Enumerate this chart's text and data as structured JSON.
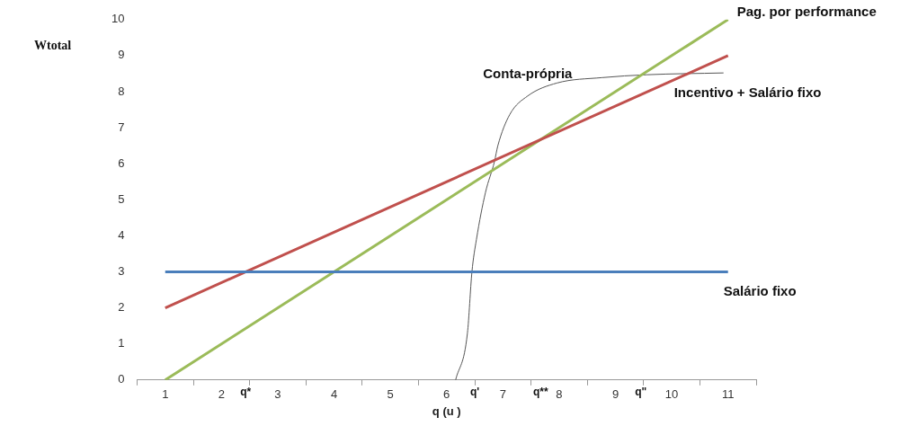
{
  "chart_data": {
    "type": "line",
    "xlabel": "q (u )",
    "ylabel": "Wtotal",
    "xlim": [
      0.5,
      11.5
    ],
    "xticks": [
      {
        "value": 0.5,
        "label": null
      },
      1,
      {
        "value": 1.5,
        "label": null
      },
      2,
      {
        "value": 2.5,
        "label": null
      },
      3,
      {
        "value": 3.5,
        "label": null
      },
      4,
      {
        "value": 4.5,
        "label": null
      },
      5,
      {
        "value": 5.5,
        "label": null
      },
      6,
      {
        "value": 6.5,
        "label": null
      },
      7,
      {
        "value": 7.5,
        "label": null
      },
      8,
      {
        "value": 8.5,
        "label": null
      },
      9,
      {
        "value": 9.5,
        "label": null
      },
      10,
      {
        "value": 10.5,
        "label": null
      },
      11,
      {
        "value": 11.5,
        "label": null
      }
    ],
    "ylim": [
      0,
      10
    ],
    "yticks": [
      0,
      1,
      2,
      3,
      4,
      5,
      6,
      7,
      8,
      9,
      10
    ],
    "grid": false,
    "legend": false,
    "marker": "none",
    "series": [
      {
        "name": "Salário fixo",
        "color": "#4a7ebb",
        "x": [
          1,
          11
        ],
        "values": [
          3,
          3
        ]
      },
      {
        "name": "Incentivo + Salário fixo",
        "color": "#c0504d",
        "x": [
          1,
          11
        ],
        "values": [
          2,
          9
        ]
      },
      {
        "name": "Pag. por performance",
        "color": "#9bbb59",
        "x": [
          1,
          11
        ],
        "values": [
          0,
          10
        ]
      },
      {
        "name": "Conta-própria",
        "color": "#555555",
        "x": [
          6.16,
          6.37,
          6.45,
          6.53,
          6.69,
          6.85,
          6.91,
          7.12,
          7.44,
          7.96,
          8.76,
          9.56,
          10.92
        ],
        "values": [
          0,
          1.3,
          3,
          3.9,
          5.2,
          6.06,
          6.5,
          7.36,
          7.88,
          8.24,
          8.39,
          8.47,
          8.52
        ]
      }
    ],
    "annotations": [
      "q*",
      "q'",
      "q**",
      "q\""
    ]
  }
}
